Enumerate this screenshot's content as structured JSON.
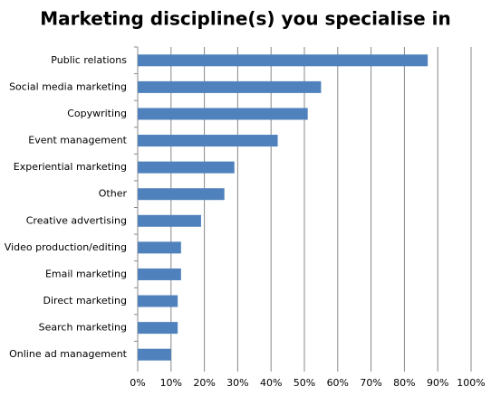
{
  "chart_data": {
    "type": "hbar",
    "title": "Marketing discipline(s) you specialise in",
    "categories": [
      "Public relations",
      "Social media marketing",
      "Copywriting",
      "Event management",
      "Experiential marketing",
      "Other",
      "Creative advertising",
      "Video production/editing",
      "Email  marketing",
      "Direct marketing",
      "Search marketing",
      "Online ad management"
    ],
    "values": [
      87,
      55,
      51,
      42,
      29,
      26,
      19,
      13,
      13,
      12,
      12,
      10
    ],
    "color": "#4f81bd",
    "xlim": [
      0,
      100
    ],
    "xticks": [
      {
        "value": 0,
        "label": "0%"
      },
      {
        "value": 10,
        "label": "10%"
      },
      {
        "value": 20,
        "label": "20%"
      },
      {
        "value": 30,
        "label": "30%"
      },
      {
        "value": 40,
        "label": "40%"
      },
      {
        "value": 50,
        "label": "50%"
      },
      {
        "value": 60,
        "label": "60%"
      },
      {
        "value": 70,
        "label": "70%"
      },
      {
        "value": 80,
        "label": "80%"
      },
      {
        "value": 90,
        "label": "90%"
      },
      {
        "value": 100,
        "label": "100%"
      }
    ],
    "grid": true
  }
}
